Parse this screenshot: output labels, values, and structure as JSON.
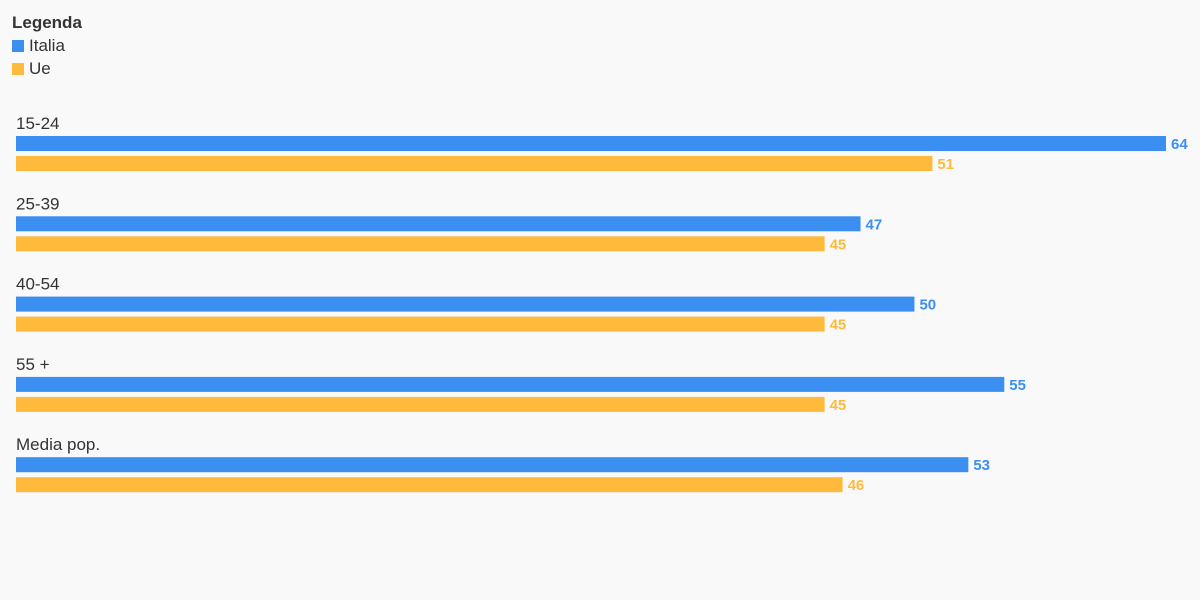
{
  "legend": {
    "title": "Legenda",
    "items": [
      {
        "name": "Italia",
        "color": "#3a8ff0"
      },
      {
        "name": "Ue",
        "color": "#ffba3b"
      }
    ]
  },
  "chart_data": {
    "type": "bar",
    "orientation": "horizontal",
    "categories": [
      "15-24",
      "25-39",
      "40-54",
      "55 +",
      "Media pop."
    ],
    "series": [
      {
        "name": "Italia",
        "color": "#3a8ff0",
        "values": [
          64,
          47,
          50,
          55,
          53
        ]
      },
      {
        "name": "Ue",
        "color": "#ffba3b",
        "values": [
          51,
          45,
          45,
          45,
          46
        ]
      }
    ],
    "xlim": [
      0,
      65
    ],
    "grid": false,
    "legend_position": "top-left",
    "data_labels": true
  }
}
